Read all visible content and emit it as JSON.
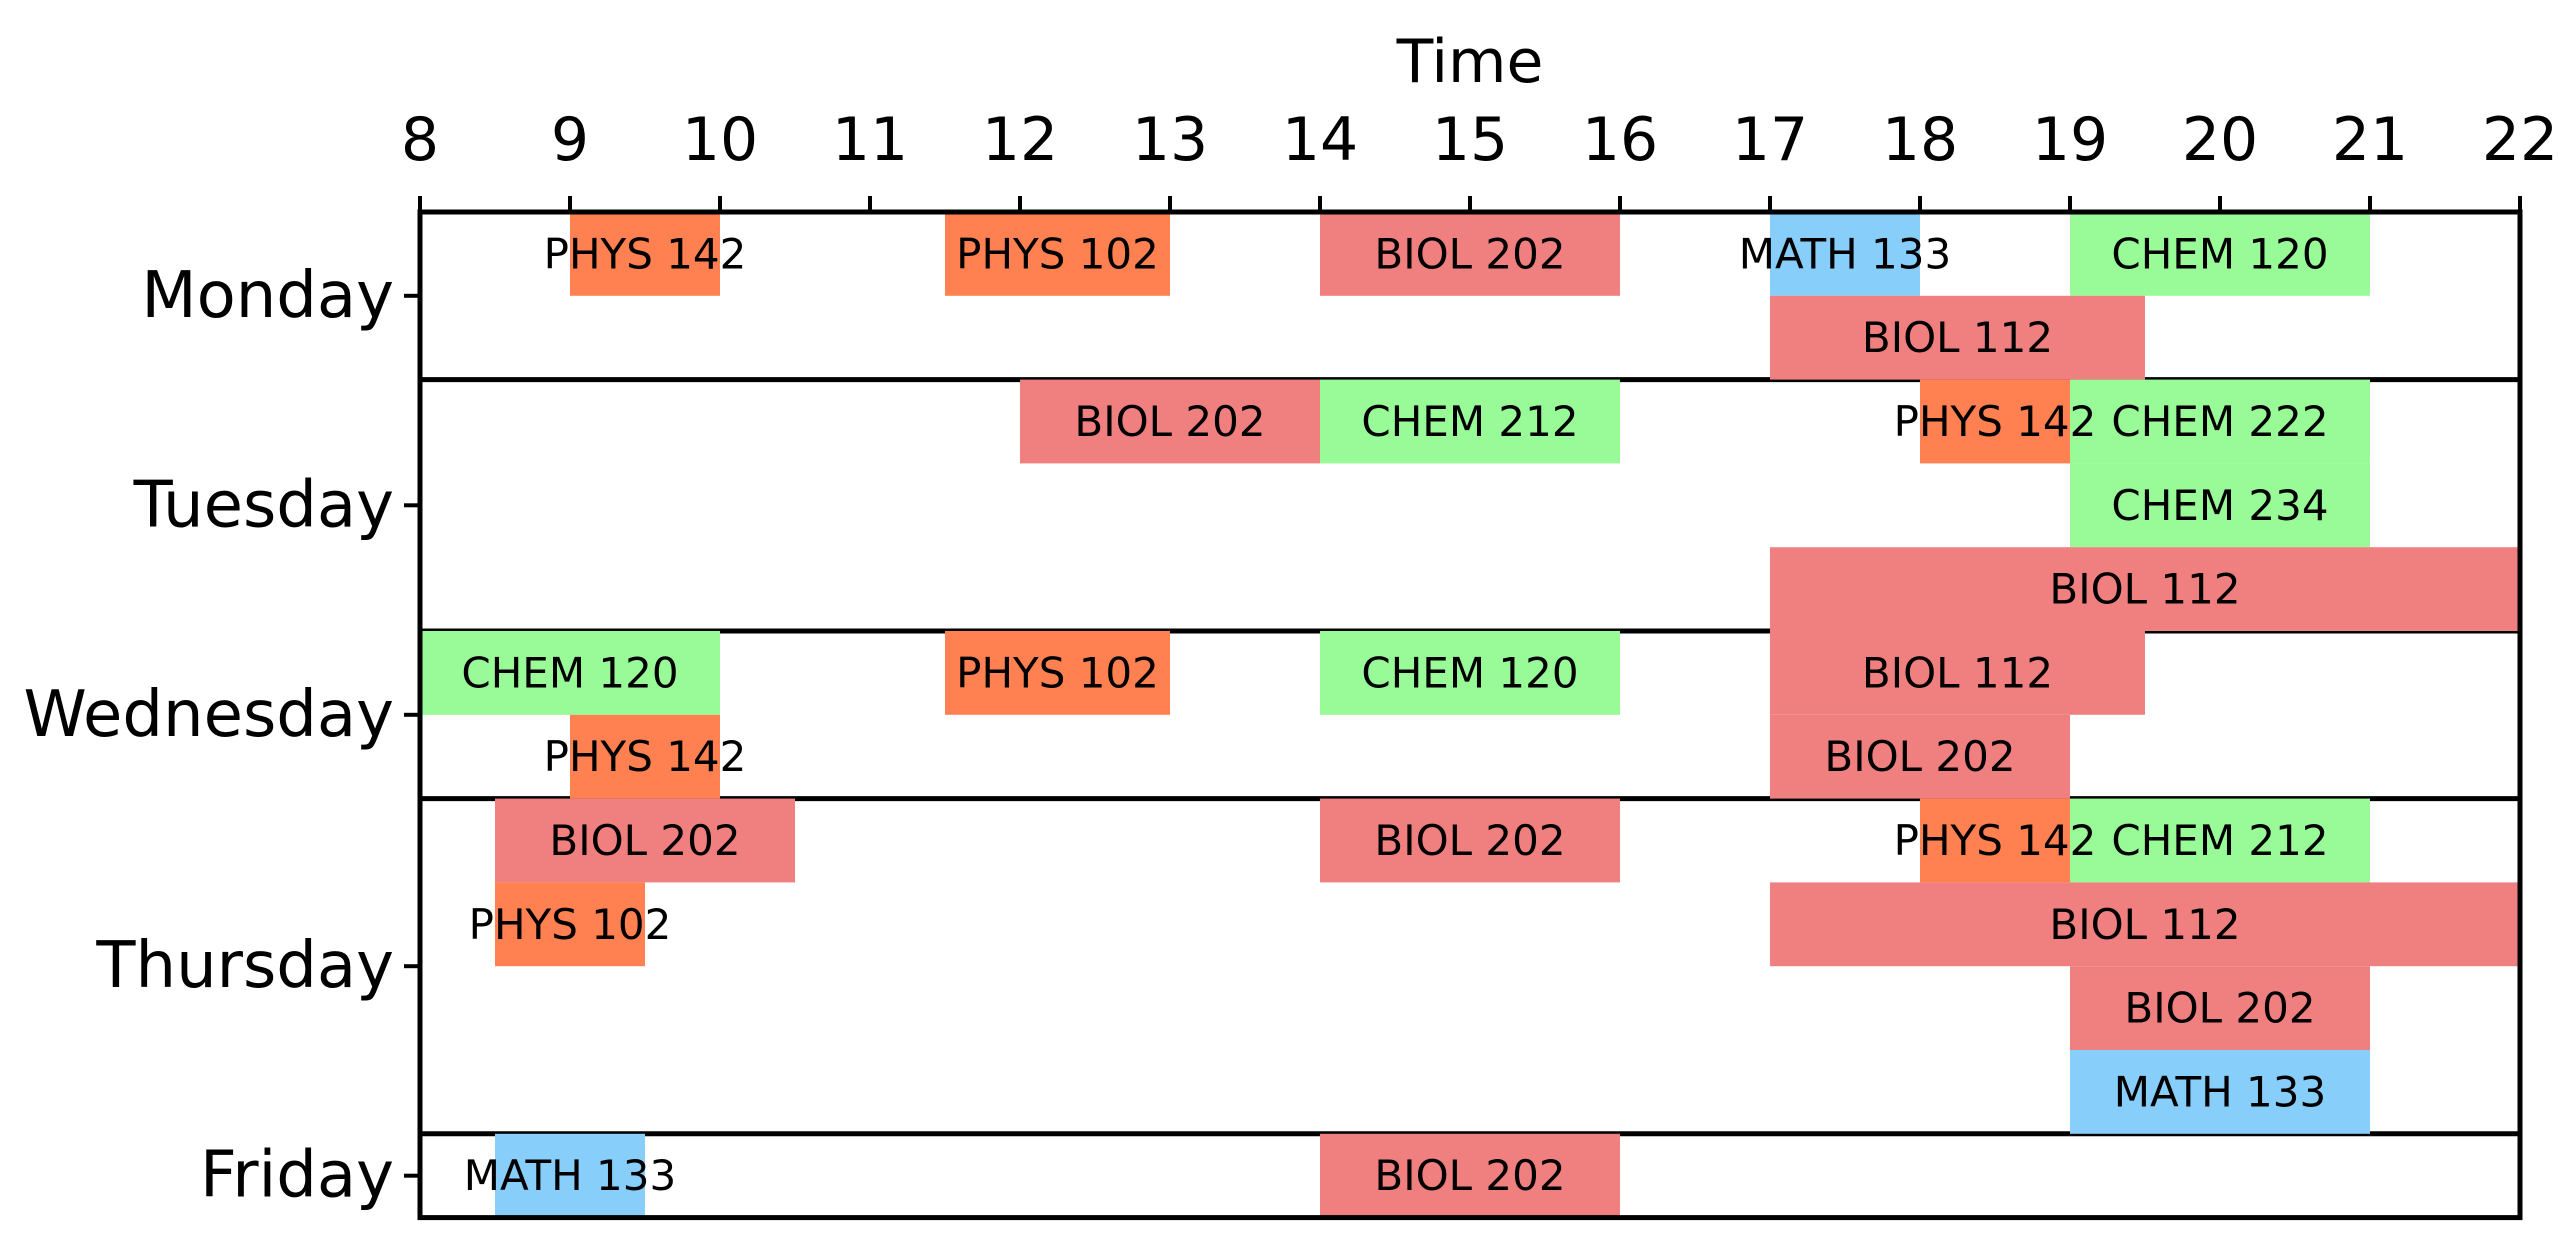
{
  "chart_data": {
    "type": "timeline",
    "title": "",
    "xlabel": "Time",
    "ylabel": "",
    "xlim": [
      8,
      22
    ],
    "xticks": [
      "8",
      "9",
      "10",
      "11",
      "12",
      "13",
      "14",
      "15",
      "16",
      "17",
      "18",
      "19",
      "20",
      "21",
      "22"
    ],
    "days": [
      {
        "name": "Monday",
        "lanes": 2,
        "courses": [
          {
            "label": "PHYS 142",
            "start": 9,
            "end": 10,
            "lane": 0,
            "dept": "PHYS"
          },
          {
            "label": "PHYS 102",
            "start": 11.5,
            "end": 13,
            "lane": 0,
            "dept": "PHYS"
          },
          {
            "label": "BIOL 202",
            "start": 14,
            "end": 16,
            "lane": 0,
            "dept": "BIOL"
          },
          {
            "label": "MATH 133",
            "start": 17,
            "end": 18,
            "lane": 0,
            "dept": "MATH"
          },
          {
            "label": "CHEM 120",
            "start": 19,
            "end": 21,
            "lane": 0,
            "dept": "CHEM"
          },
          {
            "label": "BIOL 112",
            "start": 17,
            "end": 19.5,
            "lane": 1,
            "dept": "BIOL"
          }
        ]
      },
      {
        "name": "Tuesday",
        "lanes": 3,
        "courses": [
          {
            "label": "BIOL 202",
            "start": 12,
            "end": 14,
            "lane": 0,
            "dept": "BIOL"
          },
          {
            "label": "CHEM 212",
            "start": 14,
            "end": 16,
            "lane": 0,
            "dept": "CHEM"
          },
          {
            "label": "PHYS 142",
            "start": 18,
            "end": 19,
            "lane": 0,
            "dept": "PHYS"
          },
          {
            "label": "CHEM 222",
            "start": 19,
            "end": 21,
            "lane": 0,
            "dept": "CHEM"
          },
          {
            "label": "CHEM 234",
            "start": 19,
            "end": 21,
            "lane": 1,
            "dept": "CHEM"
          },
          {
            "label": "BIOL 112",
            "start": 17,
            "end": 22,
            "lane": 2,
            "dept": "BIOL"
          }
        ]
      },
      {
        "name": "Wednesday",
        "lanes": 2,
        "courses": [
          {
            "label": "CHEM 120",
            "start": 8,
            "end": 10,
            "lane": 0,
            "dept": "CHEM"
          },
          {
            "label": "PHYS 102",
            "start": 11.5,
            "end": 13,
            "lane": 0,
            "dept": "PHYS"
          },
          {
            "label": "CHEM 120",
            "start": 14,
            "end": 16,
            "lane": 0,
            "dept": "CHEM"
          },
          {
            "label": "BIOL 112",
            "start": 17,
            "end": 19.5,
            "lane": 0,
            "dept": "BIOL"
          },
          {
            "label": "PHYS 142",
            "start": 9,
            "end": 10,
            "lane": 1,
            "dept": "PHYS"
          },
          {
            "label": "BIOL 202",
            "start": 17,
            "end": 19,
            "lane": 1,
            "dept": "BIOL"
          }
        ]
      },
      {
        "name": "Thursday",
        "lanes": 4,
        "courses": [
          {
            "label": "BIOL 202",
            "start": 8.5,
            "end": 10.5,
            "lane": 0,
            "dept": "BIOL"
          },
          {
            "label": "BIOL 202",
            "start": 14,
            "end": 16,
            "lane": 0,
            "dept": "BIOL"
          },
          {
            "label": "PHYS 142",
            "start": 18,
            "end": 19,
            "lane": 0,
            "dept": "PHYS"
          },
          {
            "label": "CHEM 212",
            "start": 19,
            "end": 21,
            "lane": 0,
            "dept": "CHEM"
          },
          {
            "label": "PHYS 102",
            "start": 8.5,
            "end": 9.5,
            "lane": 1,
            "dept": "PHYS"
          },
          {
            "label": "BIOL 112",
            "start": 17,
            "end": 22,
            "lane": 1,
            "dept": "BIOL"
          },
          {
            "label": "BIOL 202",
            "start": 19,
            "end": 21,
            "lane": 2,
            "dept": "BIOL"
          },
          {
            "label": "MATH 133",
            "start": 19,
            "end": 21,
            "lane": 3,
            "dept": "MATH"
          }
        ]
      },
      {
        "name": "Friday",
        "lanes": 1,
        "courses": [
          {
            "label": "MATH 133",
            "start": 8.5,
            "end": 9.5,
            "lane": 0,
            "dept": "MATH"
          },
          {
            "label": "BIOL 202",
            "start": 14,
            "end": 16,
            "lane": 0,
            "dept": "BIOL"
          }
        ]
      }
    ],
    "colors": {
      "PHYS": "#ff8050",
      "BIOL": "#f08080",
      "MATH": "#87cefa",
      "CHEM": "#98fb98"
    }
  }
}
